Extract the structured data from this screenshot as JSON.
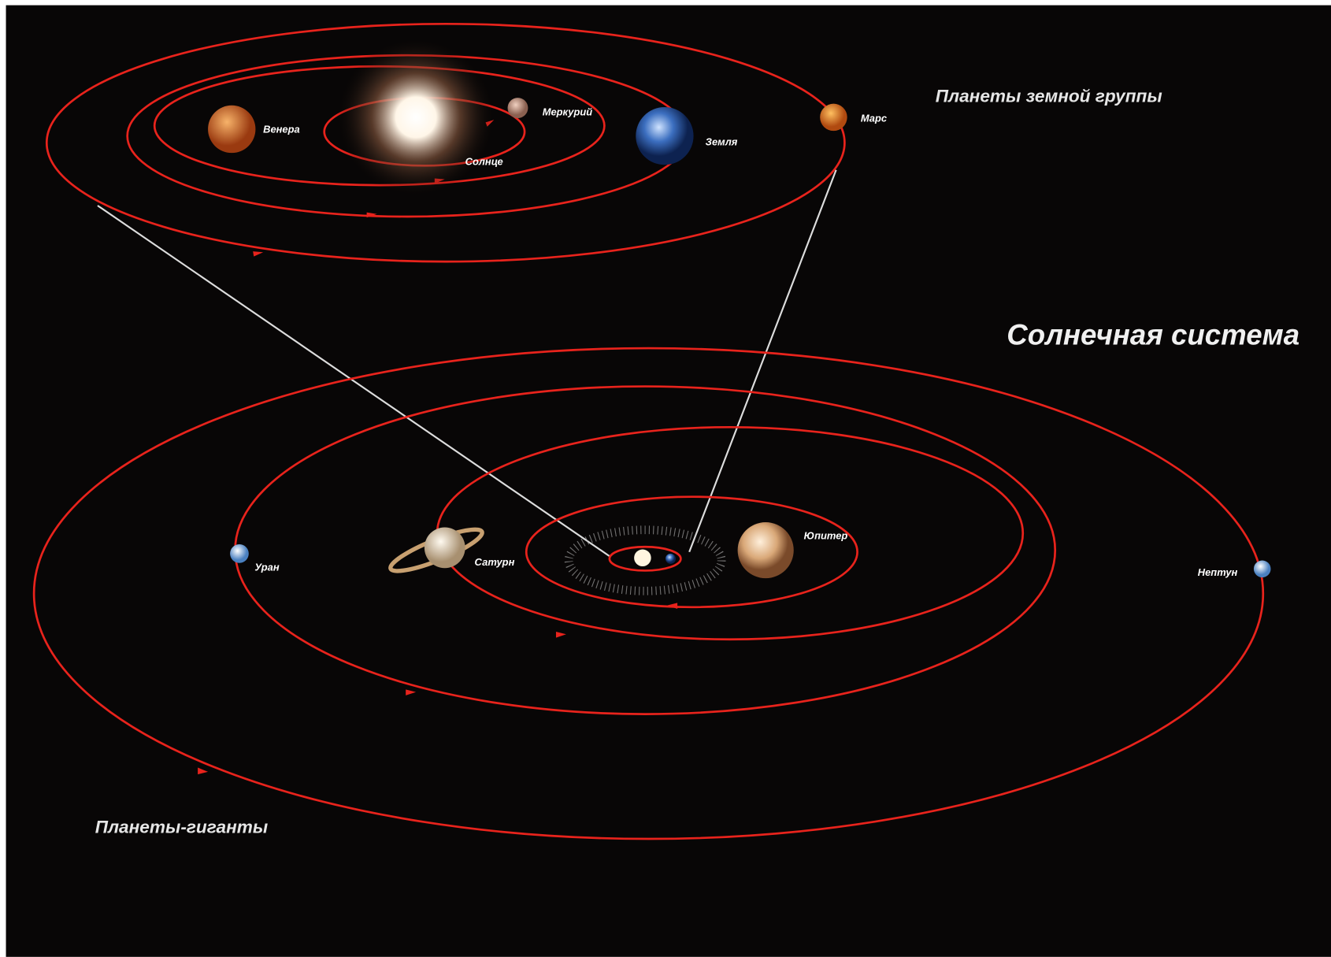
{
  "title": "Солнечная система",
  "terrestrial": {
    "heading": "Планеты земной группы",
    "bodies": [
      "Венера",
      "Солнце",
      "Меркурий",
      "Земля",
      "Марс"
    ]
  },
  "giants": {
    "heading": "Планеты-гиганты",
    "bodies": [
      "Юпитер",
      "Сатурн",
      "Уран",
      "Нептун"
    ]
  }
}
